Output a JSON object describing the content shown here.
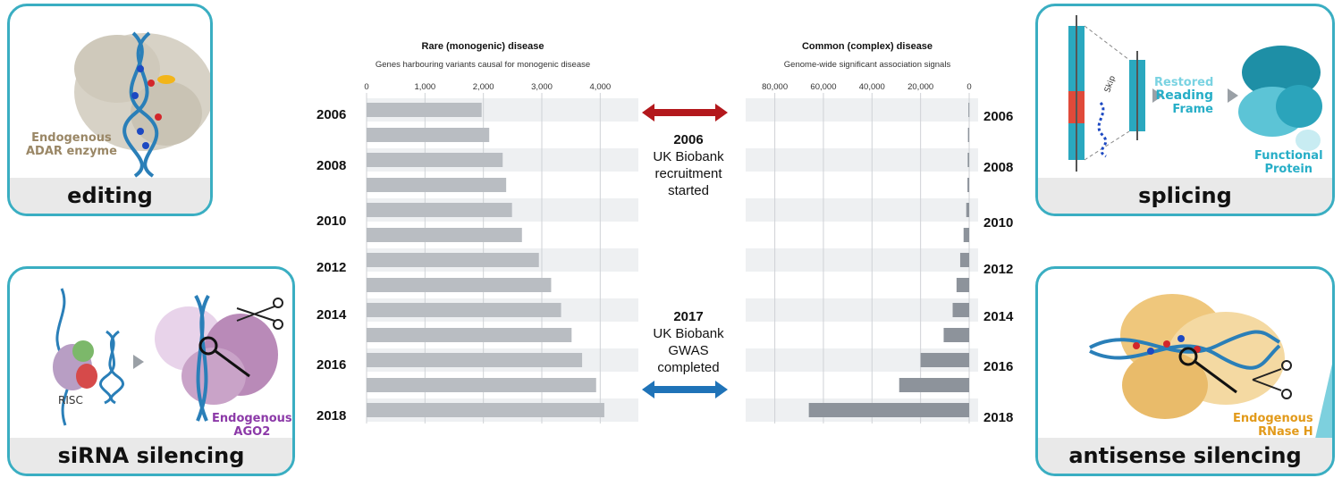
{
  "panels": {
    "editing": {
      "caption": "editing",
      "label_line1": "Endogenous",
      "label_line2": "ADAR enzyme"
    },
    "splicing": {
      "caption": "splicing",
      "label_restored": "Restored",
      "label_reading": "Reading",
      "label_frame": "Frame",
      "label_functional": "Functional",
      "label_protein": "Protein",
      "label_skip": "Skip"
    },
    "sirna": {
      "caption": "siRNA silencing",
      "label_risc": "RISC",
      "label_line1": "Endogenous",
      "label_line2": "AGO2"
    },
    "antisense": {
      "caption": "antisense silencing",
      "label_line1": "Endogenous",
      "label_line2": "RNase H"
    }
  },
  "center_notes": {
    "top": {
      "year": "2006",
      "line1": "UK Biobank",
      "line2": "recruitment",
      "line3": "started"
    },
    "bottom": {
      "year": "2017",
      "line1": "UK Biobank",
      "line2": "GWAS",
      "line3": "completed"
    }
  },
  "colors": {
    "panel_border": "#3aaec2",
    "bar_left": "#b9bdc2",
    "bar_right": "#8d939b",
    "band": "#eef0f2",
    "arrow_top": "#b3181c",
    "arrow_bottom": "#1f73b8"
  },
  "year_labels": [
    "2006",
    "2008",
    "2010",
    "2012",
    "2014",
    "2016",
    "2018"
  ],
  "chart_data": [
    {
      "type": "bar",
      "orientation": "horizontal",
      "title": "Rare (monogenic) disease",
      "subtitle": "Genes harbouring variants causal for monogenic disease",
      "categories": [
        "2006",
        "2007",
        "2008",
        "2009",
        "2010",
        "2011",
        "2012",
        "2013",
        "2014",
        "2015",
        "2016",
        "2017",
        "2018"
      ],
      "values": [
        1970,
        2100,
        2330,
        2390,
        2490,
        2660,
        2950,
        3160,
        3330,
        3510,
        3690,
        3930,
        4070
      ],
      "xlim": [
        0,
        4500
      ],
      "xticks": [
        "0",
        "1,000",
        "2,000",
        "3,000",
        "4,000"
      ],
      "grid": true
    },
    {
      "type": "bar",
      "orientation": "horizontal",
      "reversed_axis": true,
      "title": "Common (complex) disease",
      "subtitle": "Genome-wide significant association signals",
      "categories": [
        "2006",
        "2007",
        "2008",
        "2009",
        "2010",
        "2011",
        "2012",
        "2013",
        "2014",
        "2015",
        "2016",
        "2017",
        "2018"
      ],
      "values": [
        300,
        500,
        600,
        700,
        1200,
        2300,
        3700,
        5200,
        6800,
        10500,
        20000,
        28800,
        66000
      ],
      "xlim": [
        0,
        92000
      ],
      "xticks": [
        "80,000",
        "60,000",
        "40,000",
        "20,000",
        "0"
      ],
      "grid": true
    }
  ]
}
